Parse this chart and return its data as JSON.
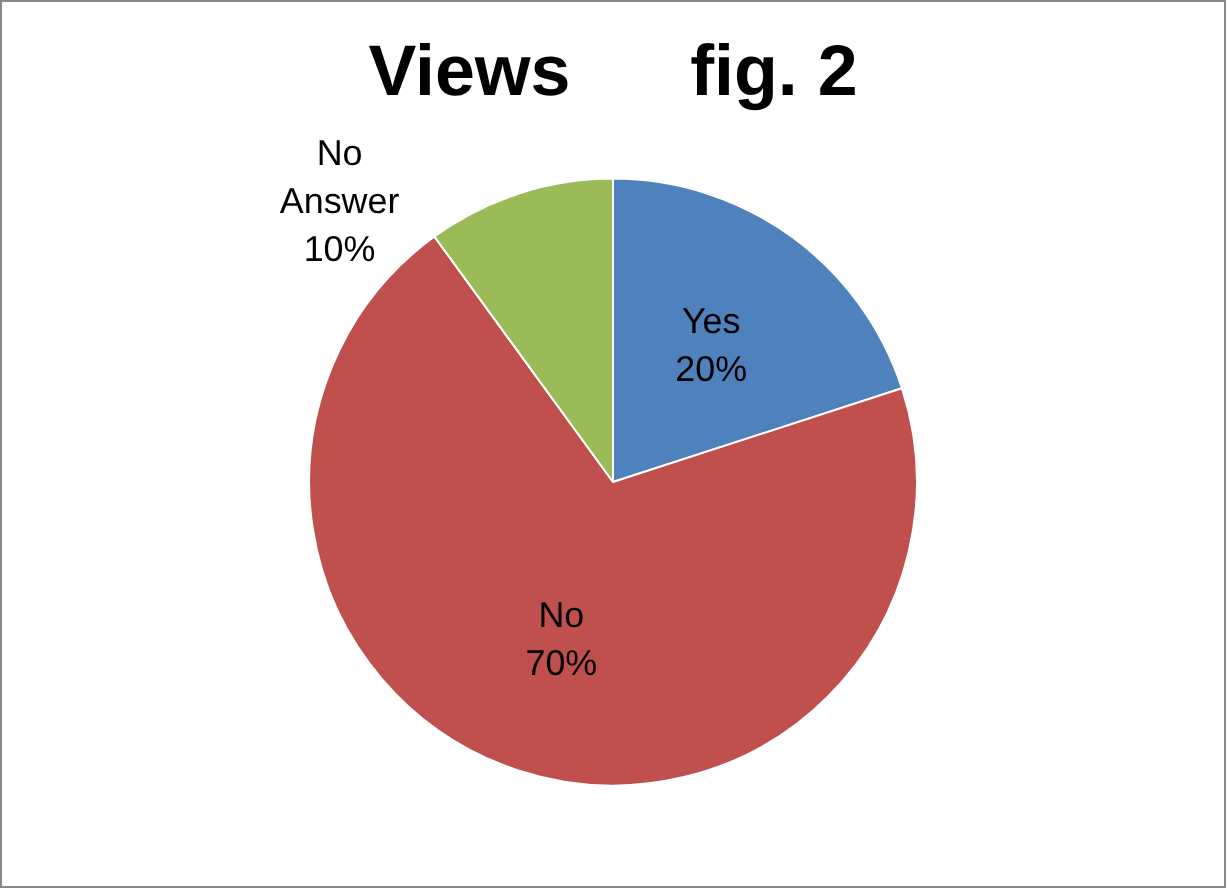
{
  "chart_data": {
    "type": "pie",
    "title": "Views      fig. 2",
    "categories": [
      "Yes",
      "No",
      "No Answer"
    ],
    "values": [
      20,
      70,
      10
    ],
    "value_labels": [
      "20%",
      "70%",
      "10%"
    ],
    "colors": [
      "#4f81bd",
      "#c0504d",
      "#9bbb59"
    ],
    "legend": false
  }
}
